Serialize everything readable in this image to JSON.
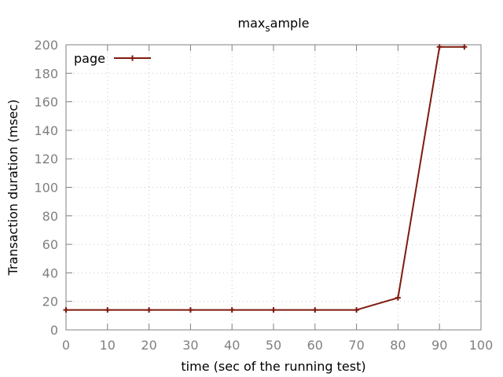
{
  "chart_data": {
    "type": "line",
    "title": {
      "main": "max",
      "sub": "s",
      "rest": "ample"
    },
    "xlabel": "time (sec of the running test)",
    "ylabel": "Transaction duration (msec)",
    "xlim": [
      0,
      100
    ],
    "ylim": [
      0,
      200
    ],
    "xticks": [
      0,
      10,
      20,
      30,
      40,
      50,
      60,
      70,
      80,
      90,
      100
    ],
    "yticks": [
      0,
      20,
      40,
      60,
      80,
      100,
      120,
      140,
      160,
      180,
      200
    ],
    "grid": true,
    "legend_position": "top-left",
    "series": [
      {
        "name": "page",
        "color": "#7f1a0f",
        "x": [
          0,
          10,
          20,
          30,
          40,
          50,
          60,
          70,
          80,
          90,
          96
        ],
        "y": [
          14,
          14,
          14,
          14,
          14,
          14,
          14,
          14,
          22.5,
          198.5,
          198.5
        ]
      }
    ]
  }
}
